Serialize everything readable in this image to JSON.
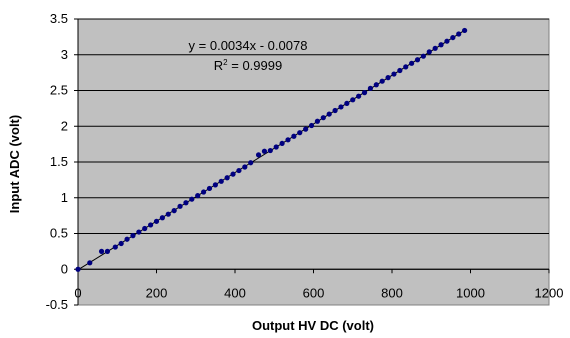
{
  "chart_data": {
    "type": "scatter",
    "title": "",
    "xlabel": "Output HV DC (volt)",
    "ylabel": "Input ADC (volt)",
    "xlim": [
      0,
      1200
    ],
    "ylim": [
      -0.5,
      3.5
    ],
    "x_ticks": [
      "0",
      "200",
      "400",
      "600",
      "800",
      "1000",
      "1200"
    ],
    "y_ticks": [
      "-0.5",
      "0",
      "0.5",
      "1",
      "1.5",
      "2",
      "2.5",
      "3",
      "3.5"
    ],
    "grid": "horizontal",
    "background_color": "#c0c0c0",
    "gridline_color": "#000000",
    "marker_color": "#000080",
    "trendline_color": "#000000",
    "equation": "y = 0.0034x - 0.0078",
    "r_squared_base": "R",
    "r_squared_exponent": "2",
    "r_squared_value": " = 0.9999",
    "trendline": {
      "slope": 0.0034,
      "intercept": -0.0078
    },
    "series": [
      {
        "x": [
          0,
          30,
          60,
          75,
          95,
          110,
          125,
          140,
          155,
          170,
          185,
          200,
          215,
          230,
          245,
          260,
          275,
          290,
          305,
          320,
          335,
          350,
          365,
          380,
          395,
          410,
          425,
          440,
          460,
          475,
          490,
          505,
          520,
          535,
          550,
          565,
          580,
          595,
          610,
          625,
          640,
          655,
          670,
          685,
          700,
          715,
          730,
          745,
          760,
          775,
          790,
          805,
          820,
          835,
          850,
          865,
          880,
          895,
          910,
          925,
          940,
          955,
          970,
          985
        ],
        "y": [
          0,
          0.09,
          0.25,
          0.25,
          0.31,
          0.36,
          0.42,
          0.47,
          0.52,
          0.57,
          0.62,
          0.67,
          0.72,
          0.77,
          0.82,
          0.88,
          0.93,
          0.98,
          1.03,
          1.08,
          1.13,
          1.18,
          1.23,
          1.28,
          1.33,
          1.38,
          1.43,
          1.49,
          1.6,
          1.65,
          1.66,
          1.71,
          1.76,
          1.81,
          1.86,
          1.91,
          1.96,
          2.01,
          2.07,
          2.12,
          2.17,
          2.22,
          2.27,
          2.32,
          2.37,
          2.42,
          2.47,
          2.53,
          2.58,
          2.63,
          2.68,
          2.73,
          2.78,
          2.83,
          2.88,
          2.93,
          2.98,
          3.04,
          3.09,
          3.14,
          3.19,
          3.24,
          3.29,
          3.34
        ]
      }
    ]
  }
}
